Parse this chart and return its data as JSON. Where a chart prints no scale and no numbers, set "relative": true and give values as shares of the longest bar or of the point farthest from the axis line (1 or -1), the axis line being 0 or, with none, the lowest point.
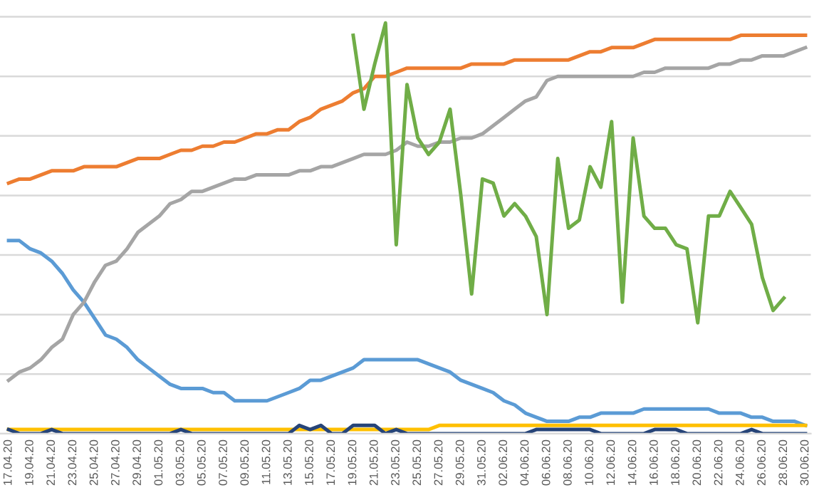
{
  "chart_data": {
    "type": "line",
    "relative": true,
    "grid": "y",
    "tick_labels": "x",
    "categories": [
      "17.04.20",
      null,
      "19.04.20",
      null,
      "21.04.20",
      null,
      "23.04.20",
      null,
      "25.04.20",
      null,
      "27.04.20",
      null,
      "29.04.20",
      null,
      "01.05.20",
      null,
      "03.05.20",
      null,
      "05.05.20",
      null,
      "07.05.20",
      null,
      "09.05.20",
      null,
      "11.05.20",
      null,
      "13.05.20",
      null,
      "15.05.20",
      null,
      "17.05.20",
      null,
      "19.05.20",
      null,
      "21.05.20",
      null,
      "23.05.20",
      null,
      "25.05.20",
      null,
      "27.05.20",
      null,
      "29.05.20",
      null,
      "31.05.20",
      null,
      "02.06.20",
      null,
      "04.06.20",
      null,
      "06.06.20",
      null,
      "08.06.20",
      null,
      "10.06.20",
      null,
      "12.06.20",
      null,
      "14.06.20",
      null,
      "16.06.20",
      null,
      "18.06.20",
      null,
      "20.06.20",
      null,
      "22.06.20",
      null,
      "24.06.20",
      null,
      "26.06.20",
      null,
      "28.06.20",
      null,
      "30.06.20"
    ],
    "series": [
      {
        "color": "#5b9bd5",
        "values": [
          0.47,
          0.47,
          0.45,
          0.44,
          0.42,
          0.39,
          0.35,
          0.32,
          0.28,
          0.24,
          0.23,
          0.21,
          0.18,
          0.16,
          0.14,
          0.12,
          0.11,
          0.11,
          0.11,
          0.1,
          0.1,
          0.08,
          0.08,
          0.08,
          0.08,
          0.09,
          0.1,
          0.11,
          0.13,
          0.13,
          0.14,
          0.15,
          0.16,
          0.18,
          0.18,
          0.18,
          0.18,
          0.18,
          0.18,
          0.17,
          0.16,
          0.15,
          0.13,
          0.12,
          0.11,
          0.1,
          0.08,
          0.07,
          0.05,
          0.04,
          0.03,
          0.03,
          0.03,
          0.04,
          0.04,
          0.05,
          0.05,
          0.05,
          0.05,
          0.06,
          0.06,
          0.06,
          0.06,
          0.06,
          0.06,
          0.06,
          0.05,
          0.05,
          0.05,
          0.04,
          0.04,
          0.03,
          0.03,
          0.03,
          0.02
        ]
      },
      {
        "color": "#ed7d31",
        "values": [
          0.61,
          0.62,
          0.62,
          0.63,
          0.64,
          0.64,
          0.64,
          0.65,
          0.65,
          0.65,
          0.65,
          0.66,
          0.67,
          0.67,
          0.67,
          0.68,
          0.69,
          0.69,
          0.7,
          0.7,
          0.71,
          0.71,
          0.72,
          0.73,
          0.73,
          0.74,
          0.74,
          0.76,
          0.77,
          0.79,
          0.8,
          0.81,
          0.83,
          0.84,
          0.87,
          0.87,
          0.88,
          0.89,
          0.89,
          0.89,
          0.89,
          0.89,
          0.89,
          0.9,
          0.9,
          0.9,
          0.9,
          0.91,
          0.91,
          0.91,
          0.91,
          0.91,
          0.91,
          0.92,
          0.93,
          0.93,
          0.94,
          0.94,
          0.94,
          0.95,
          0.96,
          0.96,
          0.96,
          0.96,
          0.96,
          0.96,
          0.96,
          0.96,
          0.97,
          0.97,
          0.97,
          0.97,
          0.97,
          0.97,
          0.97
        ]
      },
      {
        "color": "#a5a5a5",
        "values": [
          0.13,
          0.15,
          0.16,
          0.18,
          0.21,
          0.23,
          0.29,
          0.32,
          0.37,
          0.41,
          0.42,
          0.45,
          0.49,
          0.51,
          0.53,
          0.56,
          0.57,
          0.59,
          0.59,
          0.6,
          0.61,
          0.62,
          0.62,
          0.63,
          0.63,
          0.63,
          0.63,
          0.64,
          0.64,
          0.65,
          0.65,
          0.66,
          0.67,
          0.68,
          0.68,
          0.68,
          0.69,
          0.71,
          0.7,
          0.7,
          0.71,
          0.71,
          0.72,
          0.72,
          0.73,
          0.75,
          0.77,
          0.79,
          0.81,
          0.82,
          0.86,
          0.87,
          0.87,
          0.87,
          0.87,
          0.87,
          0.87,
          0.87,
          0.87,
          0.88,
          0.88,
          0.89,
          0.89,
          0.89,
          0.89,
          0.89,
          0.9,
          0.9,
          0.91,
          0.91,
          0.92,
          0.92,
          0.92,
          0.93,
          0.94
        ]
      },
      {
        "color": "#ffc000",
        "values": [
          0.01,
          0.01,
          0.01,
          0.01,
          0.01,
          0.01,
          0.01,
          0.01,
          0.01,
          0.01,
          0.01,
          0.01,
          0.01,
          0.01,
          0.01,
          0.01,
          0.01,
          0.01,
          0.01,
          0.01,
          0.01,
          0.01,
          0.01,
          0.01,
          0.01,
          0.01,
          0.01,
          0.01,
          0.01,
          0.01,
          0.01,
          0.01,
          0.01,
          0.01,
          0.01,
          0.01,
          0.01,
          0.01,
          0.01,
          0.01,
          0.02,
          0.02,
          0.02,
          0.02,
          0.02,
          0.02,
          0.02,
          0.02,
          0.02,
          0.02,
          0.02,
          0.02,
          0.02,
          0.02,
          0.02,
          0.02,
          0.02,
          0.02,
          0.02,
          0.02,
          0.02,
          0.02,
          0.02,
          0.02,
          0.02,
          0.02,
          0.02,
          0.02,
          0.02,
          0.02,
          0.02,
          0.02,
          0.02,
          0.02,
          0.02
        ]
      },
      {
        "color": "#264478",
        "values": [
          0.01,
          0.0,
          0.0,
          0.0,
          0.01,
          0.0,
          0.0,
          0.0,
          0.0,
          0.0,
          0.0,
          0.0,
          0.0,
          0.0,
          0.0,
          0.0,
          0.01,
          0.0,
          0.0,
          0.0,
          0.0,
          0.0,
          0.0,
          0.0,
          0.0,
          0.0,
          0.0,
          0.02,
          0.01,
          0.02,
          0.0,
          0.0,
          0.02,
          0.02,
          0.02,
          0.0,
          0.01,
          0.0,
          0.0,
          0.0,
          0.0,
          0.0,
          0.0,
          0.0,
          0.0,
          0.0,
          0.0,
          0.0,
          0.0,
          0.01,
          0.01,
          0.01,
          0.01,
          0.01,
          0.01,
          0.0,
          0.0,
          0.0,
          0.0,
          0.0,
          0.01,
          0.01,
          0.01,
          0.0,
          0.0,
          0.0,
          0.0,
          0.0,
          0.0,
          0.01,
          0.0,
          0.0,
          0.0,
          0.0,
          0.0
        ]
      },
      {
        "color": "#70ad47",
        "values": [
          null,
          null,
          null,
          null,
          null,
          null,
          null,
          null,
          null,
          null,
          null,
          null,
          null,
          null,
          null,
          null,
          null,
          null,
          null,
          null,
          null,
          null,
          null,
          null,
          null,
          null,
          null,
          null,
          null,
          null,
          null,
          null,
          0.97,
          0.79,
          0.9,
          1.0,
          0.46,
          0.85,
          0.72,
          0.68,
          0.71,
          0.79,
          0.58,
          0.34,
          0.62,
          0.61,
          0.53,
          0.56,
          0.53,
          0.48,
          0.29,
          0.67,
          0.5,
          0.52,
          0.65,
          0.6,
          0.76,
          0.32,
          0.72,
          0.53,
          0.5,
          0.5,
          0.46,
          0.45,
          0.27,
          0.53,
          0.53,
          0.59,
          0.55,
          0.51,
          0.38,
          0.3,
          0.33,
          null,
          null
        ]
      }
    ]
  }
}
